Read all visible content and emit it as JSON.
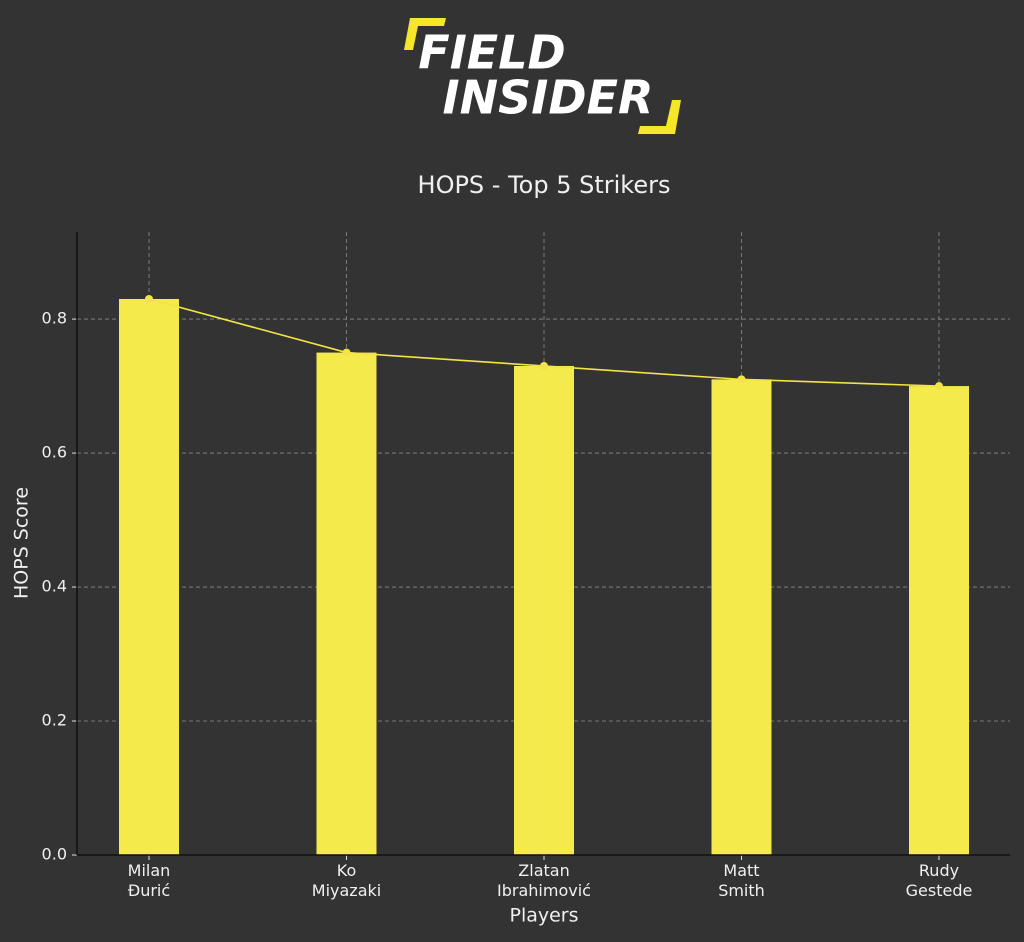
{
  "logo": {
    "line1": "FIELD",
    "line2": "INSIDER"
  },
  "chart_data": {
    "type": "bar",
    "title": "HOPS - Top 5 Strikers",
    "x_label": "Players",
    "y_label": "HOPS Score",
    "categories": [
      "Milan Đurić",
      "Ko Miyazaki",
      "Zlatan Ibrahimović",
      "Matt Smith",
      "Rudy Gestede"
    ],
    "values": [
      0.83,
      0.75,
      0.73,
      0.71,
      0.7
    ],
    "color": "#f5ea4c",
    "line_overlay": true,
    "line_color": "#f2e347",
    "ylim": [
      0,
      0.93
    ],
    "yticks": [
      {
        "value": 0,
        "label": "0.0"
      },
      0.2,
      0.4,
      0.6,
      0.8
    ],
    "grid": true
  }
}
